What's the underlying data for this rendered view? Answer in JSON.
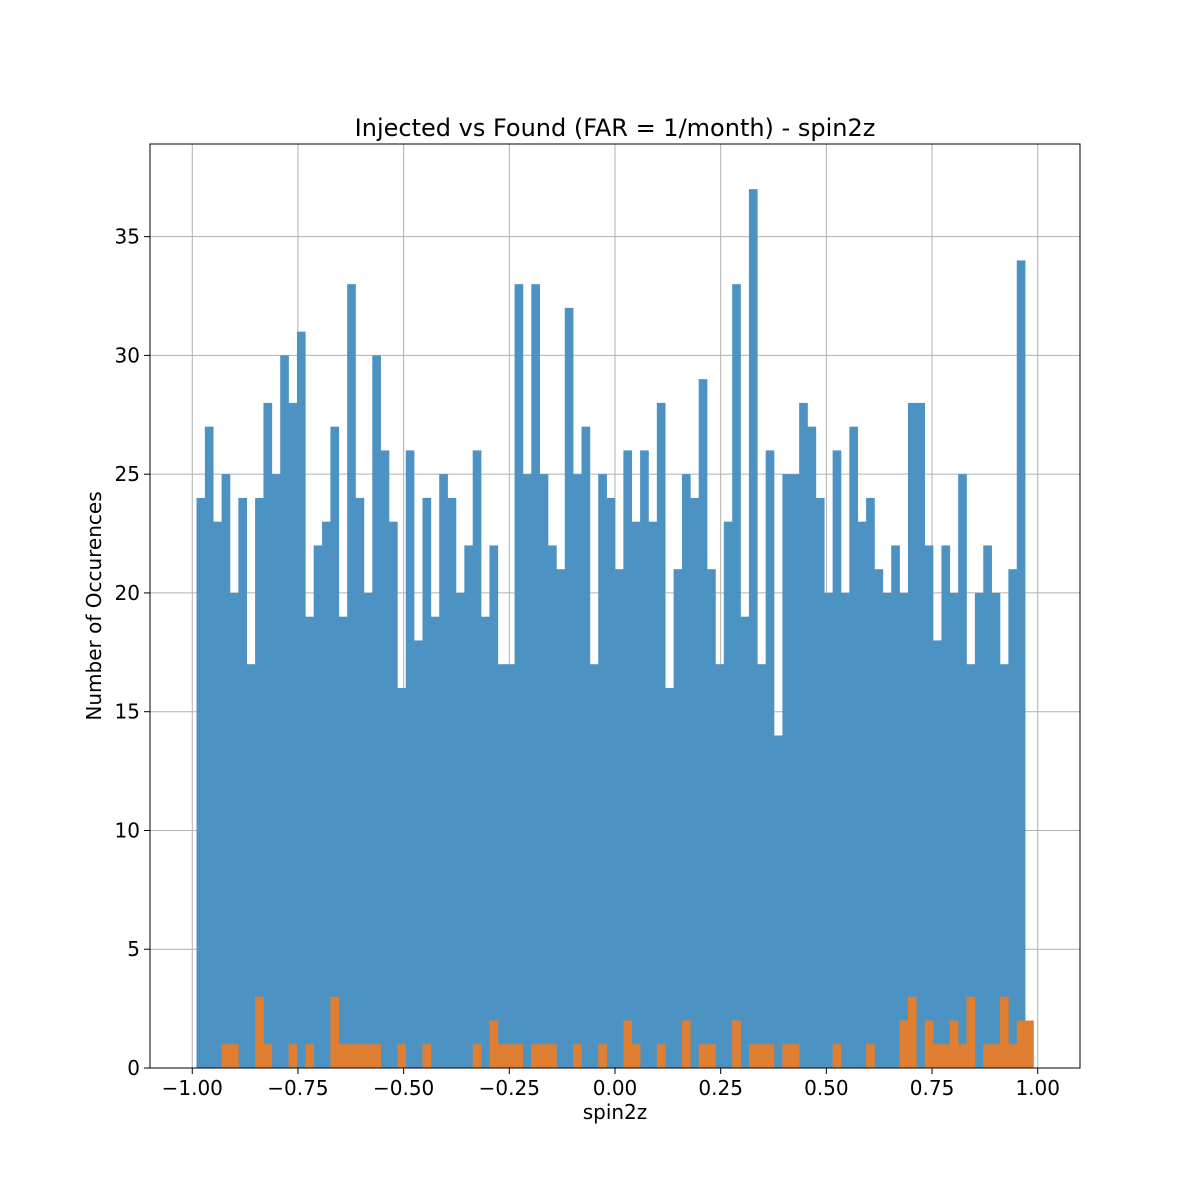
{
  "chart_data": {
    "type": "bar",
    "title": "Injected vs Found (FAR = 1/month) - spin2z",
    "xlabel": "spin2z",
    "ylabel": "Number of Occurences",
    "xlim": [
      -1.1,
      1.1
    ],
    "ylim": [
      0,
      38.9
    ],
    "xticks": [
      -1.0,
      -0.75,
      -0.5,
      -0.25,
      0.0,
      0.25,
      0.5,
      0.75,
      1.0
    ],
    "xtick_labels": [
      "−1.00",
      "−0.75",
      "−0.50",
      "−0.25",
      "0.00",
      "0.25",
      "0.50",
      "0.75",
      "1.00"
    ],
    "yticks": [
      0,
      5,
      10,
      15,
      20,
      25,
      30,
      35
    ],
    "ytick_labels": [
      "0",
      "5",
      "10",
      "15",
      "20",
      "25",
      "30",
      "35"
    ],
    "grid": true,
    "bin_range": [
      -0.99,
      0.99
    ],
    "bin_count": 100,
    "colors": {
      "injected": "#4c92c3",
      "found": "#e07f31"
    },
    "series": [
      {
        "values": [
          24,
          27,
          23,
          25,
          20,
          24,
          17,
          24,
          28,
          25,
          30,
          28,
          31,
          19,
          22,
          23,
          27,
          19,
          33,
          24,
          20,
          30,
          26,
          23,
          16,
          26,
          18,
          24,
          19,
          25,
          24,
          20,
          22,
          26,
          19,
          22,
          17,
          17,
          33,
          25,
          33,
          25,
          22,
          21,
          32,
          25,
          27,
          17,
          25,
          24,
          21,
          26,
          23,
          26,
          23,
          28,
          16,
          21,
          25,
          24,
          29,
          21,
          17,
          23,
          33,
          19,
          37,
          17,
          26,
          14,
          25,
          25,
          28,
          27,
          24,
          20,
          26,
          20,
          27,
          23,
          24,
          21,
          20,
          22,
          20,
          28,
          28,
          22,
          18,
          22,
          20,
          25,
          17,
          20,
          22,
          20,
          17,
          21,
          34,
          0
        ]
      },
      {
        "values": [
          0,
          0,
          0,
          1,
          1,
          0,
          0,
          3,
          1,
          0,
          0,
          1,
          0,
          1,
          0,
          0,
          3,
          1,
          1,
          1,
          1,
          1,
          0,
          0,
          1,
          0,
          0,
          1,
          0,
          0,
          0,
          0,
          0,
          1,
          0,
          2,
          1,
          1,
          1,
          0,
          1,
          1,
          1,
          0,
          0,
          1,
          0,
          0,
          1,
          0,
          0,
          2,
          1,
          0,
          0,
          1,
          0,
          0,
          2,
          0,
          1,
          1,
          0,
          0,
          2,
          0,
          1,
          1,
          1,
          0,
          1,
          1,
          0,
          0,
          0,
          0,
          1,
          0,
          0,
          0,
          1,
          0,
          0,
          0,
          2,
          3,
          0,
          2,
          1,
          1,
          2,
          1,
          3,
          0,
          1,
          1,
          3,
          1,
          2,
          2
        ]
      }
    ]
  }
}
